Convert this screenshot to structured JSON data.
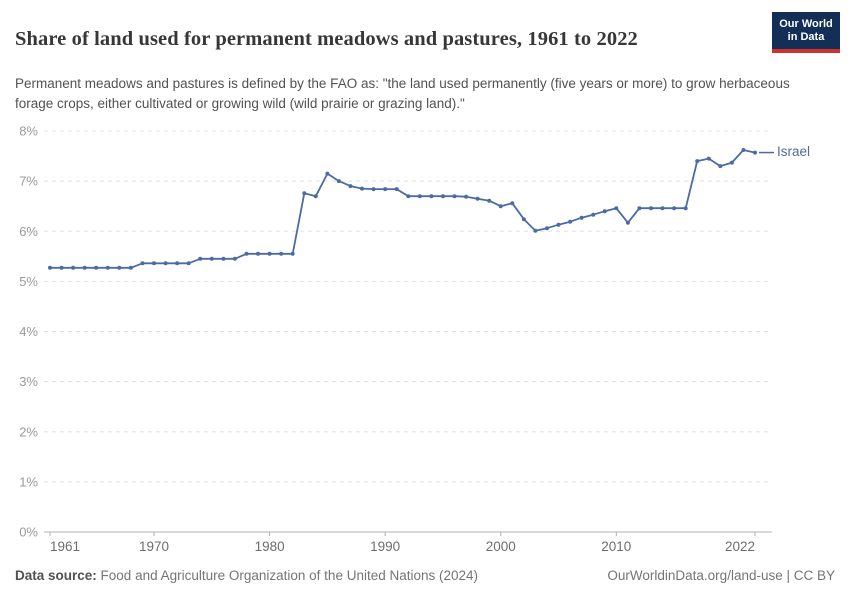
{
  "header": {
    "title": "Share of land used for permanent meadows and pastures, 1961 to 2022",
    "subtitle": "Permanent meadows and pastures is defined by the FAO as: \"the land used permanently (five years or more) to grow herbaceous forage crops, either cultivated or growing wild (wild prairie or grazing land).\"",
    "logo": {
      "line1": "Our World",
      "line2": "in Data"
    }
  },
  "chart_data": {
    "type": "line",
    "title": "Share of land used for permanent meadows and pastures, 1961 to 2022",
    "xlabel": "",
    "ylabel": "",
    "xlim": [
      1961,
      2022
    ],
    "ylim": [
      0,
      8
    ],
    "grid": "horizontal-dashed",
    "legend_position": "end-of-line-label",
    "xticks": [
      1961,
      1970,
      1980,
      1990,
      2000,
      2010,
      2022
    ],
    "yticks": [
      "0%",
      "1%",
      "2%",
      "3%",
      "4%",
      "5%",
      "6%",
      "7%",
      "8%"
    ],
    "colors": {
      "line": "#4d6ba3",
      "grid": "#e0e0e0",
      "axis": "#b0b0b0",
      "ytick_text": "#9a9a9a",
      "xtick_text": "#6d6d6d"
    },
    "series": [
      {
        "name": "Israel",
        "color": "#4d6ba3",
        "x": [
          1961,
          1962,
          1963,
          1964,
          1965,
          1966,
          1967,
          1968,
          1969,
          1970,
          1971,
          1972,
          1973,
          1974,
          1975,
          1976,
          1977,
          1978,
          1979,
          1980,
          1981,
          1982,
          1983,
          1984,
          1985,
          1986,
          1987,
          1988,
          1989,
          1990,
          1991,
          1992,
          1993,
          1994,
          1995,
          1996,
          1997,
          1998,
          1999,
          2000,
          2001,
          2002,
          2003,
          2004,
          2005,
          2006,
          2007,
          2008,
          2009,
          2010,
          2011,
          2012,
          2013,
          2014,
          2015,
          2016,
          2017,
          2018,
          2019,
          2020,
          2021,
          2022
        ],
        "values": [
          5.27,
          5.27,
          5.27,
          5.27,
          5.27,
          5.27,
          5.27,
          5.27,
          5.36,
          5.36,
          5.36,
          5.36,
          5.36,
          5.45,
          5.45,
          5.45,
          5.45,
          5.55,
          5.55,
          5.55,
          5.55,
          5.55,
          6.76,
          6.7,
          7.15,
          7.0,
          6.9,
          6.85,
          6.84,
          6.84,
          6.84,
          6.7,
          6.7,
          6.7,
          6.7,
          6.7,
          6.69,
          6.65,
          6.61,
          6.5,
          6.56,
          6.24,
          6.01,
          6.06,
          6.13,
          6.19,
          6.27,
          6.33,
          6.4,
          6.46,
          6.17,
          6.46,
          6.46,
          6.46,
          6.46,
          6.46,
          7.4,
          7.45,
          7.3,
          7.37,
          7.62,
          7.57
        ]
      }
    ]
  },
  "footer": {
    "source_label": "Data source:",
    "source_text": "Food and Agriculture Organization of the United Nations (2024)",
    "rights": "OurWorldinData.org/land-use | CC BY"
  }
}
